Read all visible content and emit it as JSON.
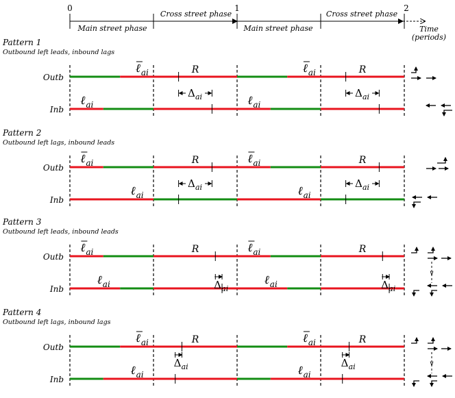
{
  "timeline": {
    "ticks": [
      "0",
      "1",
      "2"
    ],
    "main_street_phase": "Main street phase",
    "cross_street_phase": "Cross street phase",
    "time_label": "Time",
    "periods_label": "(periods)"
  },
  "row_labels": {
    "outbound": "Outb",
    "inbound": "Inb"
  },
  "symbols": {
    "ell": "ℓ",
    "sub_ai": "ai",
    "R": "R",
    "delta": "Δ"
  },
  "colors": {
    "green": "#138c13",
    "red": "#e8141e",
    "black": "#000000"
  },
  "patterns": [
    {
      "title": "Pattern 1",
      "subtitle": "Outbound left leads, inbound lags",
      "outbound": {
        "segments": [
          [
            "G",
            0,
            0.3
          ],
          [
            "R",
            0.3,
            1
          ],
          [
            "G",
            1,
            1.3
          ],
          [
            "R",
            1.3,
            2
          ]
        ],
        "ell_bar_x": 0.43,
        "R_x": 0.75,
        "ticks": [
          0.65,
          1.65
        ]
      },
      "inbound": {
        "segments": [
          [
            "R",
            0,
            0.2
          ],
          [
            "G",
            0.2,
            0.5
          ],
          [
            "R",
            0.5,
            1.2
          ],
          [
            "G",
            1.2,
            1.5
          ],
          [
            "R",
            1.5,
            2
          ]
        ],
        "ell_x": 0.1,
        "ticks": [
          0.85,
          1.85
        ]
      },
      "delta": {
        "style": "wide",
        "left": 0.65,
        "right": 0.85
      }
    },
    {
      "title": "Pattern 2",
      "subtitle": "Outbound left lags, inbound leads",
      "outbound": {
        "segments": [
          [
            "R",
            0,
            0.2
          ],
          [
            "G",
            0.2,
            0.5
          ],
          [
            "R",
            0.5,
            1.2
          ],
          [
            "G",
            1.2,
            1.5
          ],
          [
            "R",
            1.5,
            2
          ]
        ],
        "ell_bar_x": 0.1,
        "R_x": 0.75,
        "ticks": [
          0.85,
          1.85
        ]
      },
      "inbound": {
        "segments": [
          [
            "R",
            0,
            0.5
          ],
          [
            "G",
            0.5,
            1
          ],
          [
            "R",
            1,
            1.5
          ],
          [
            "G",
            1.5,
            2
          ]
        ],
        "ell_x": 0.4,
        "ticks": [
          0.65,
          1.65
        ]
      },
      "delta": {
        "style": "wide",
        "left": 0.65,
        "right": 0.85
      }
    },
    {
      "title": "Pattern 3",
      "subtitle": "Outbound left leads, inbound leads",
      "outbound": {
        "segments": [
          [
            "R",
            0,
            0.2
          ],
          [
            "G",
            0.2,
            0.5
          ],
          [
            "R",
            0.5,
            1.2
          ],
          [
            "G",
            1.2,
            1.5
          ],
          [
            "R",
            1.5,
            2
          ]
        ],
        "ell_bar_x": 0.1,
        "R_x": 0.75,
        "ticks": [
          0.87,
          1.87
        ]
      },
      "inbound": {
        "segments": [
          [
            "R",
            0,
            0.3
          ],
          [
            "G",
            0.3,
            0.5
          ],
          [
            "R",
            0.5,
            1.3
          ],
          [
            "G",
            1.3,
            1.5
          ],
          [
            "R",
            1.5,
            2
          ]
        ],
        "ell_x": 0.2,
        "ticks": [
          0.91,
          1.91
        ]
      },
      "delta": {
        "style": "narrow",
        "left": 0.87,
        "right": 0.91
      }
    },
    {
      "title": "Pattern 4",
      "subtitle": "Outbound left lags, inbound lags",
      "outbound": {
        "segments": [
          [
            "G",
            0,
            0.3
          ],
          [
            "R",
            0.3,
            1
          ],
          [
            "G",
            1,
            1.3
          ],
          [
            "R",
            1.3,
            2
          ]
        ],
        "ell_bar_x": 0.43,
        "R_x": 0.75,
        "ticks": [
          0.67,
          1.67
        ]
      },
      "inbound": {
        "segments": [
          [
            "G",
            0,
            0.2
          ],
          [
            "R",
            0.2,
            1
          ],
          [
            "G",
            1,
            1.2
          ],
          [
            "R",
            1.2,
            2
          ]
        ],
        "ell_x": 0.4,
        "ticks": [
          0.63,
          1.63
        ]
      },
      "delta": {
        "style": "narrow",
        "left": 0.63,
        "right": 0.67
      }
    }
  ]
}
